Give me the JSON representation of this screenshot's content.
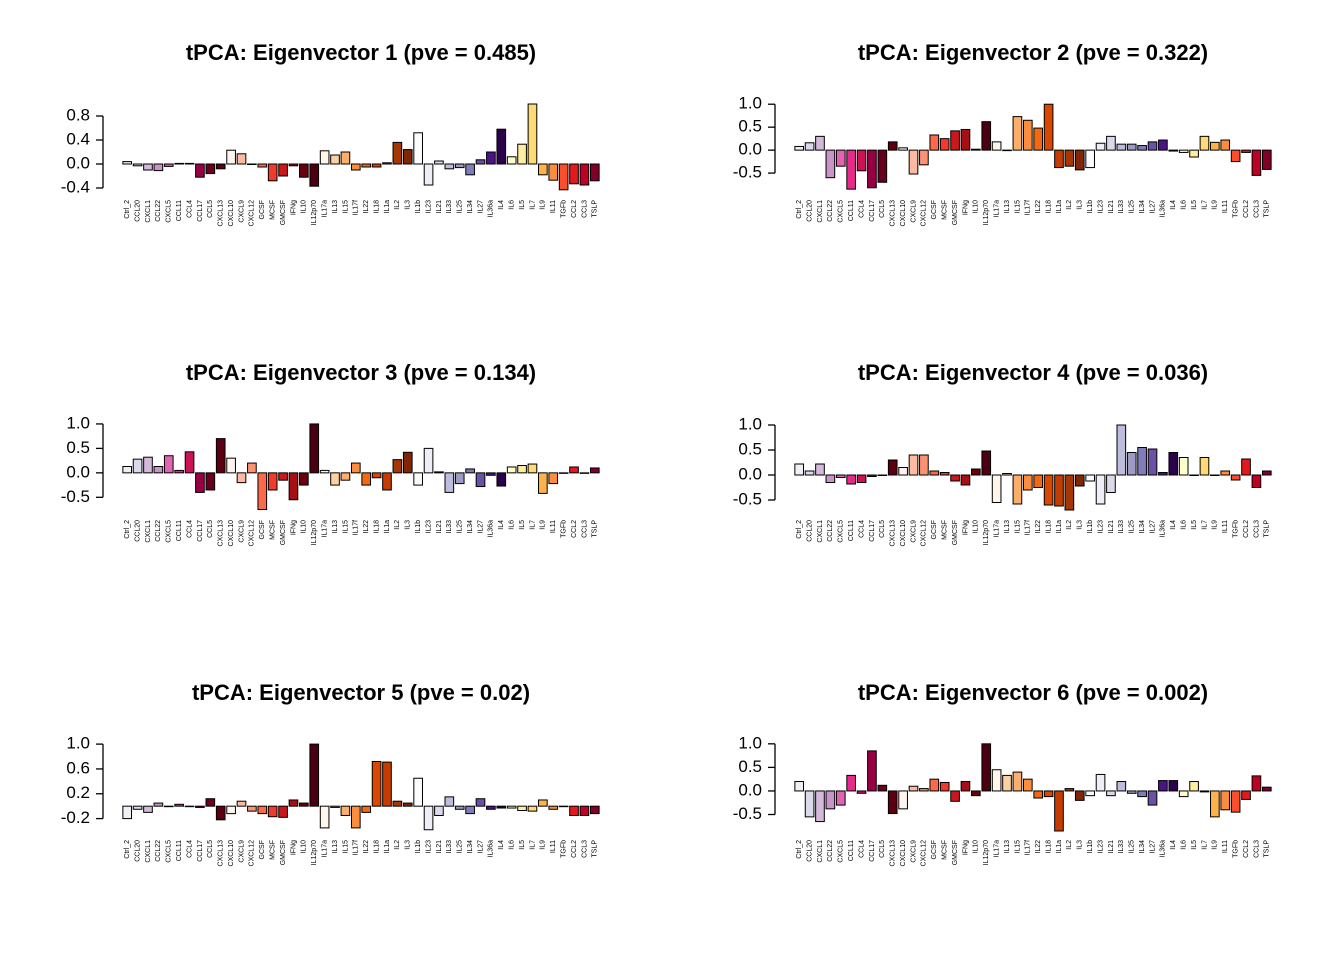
{
  "chart_data": [
    {
      "type": "bar",
      "title": "tPCA: Eigenvector 1 (pve = 0.485)",
      "categories": [
        "Ctrl_2",
        "CCL20",
        "CXCL1",
        "CCL22",
        "CXCL5",
        "CCL11",
        "CCL4",
        "CCL17",
        "CCL5",
        "CXCL13",
        "CXCL10",
        "CXCL9",
        "CXCL12",
        "GCSF",
        "MCSF",
        "GMCSF",
        "IFNg",
        "IL10",
        "IL12p70",
        "IL17a",
        "IL13",
        "IL15",
        "IL17f",
        "IL22",
        "IL18",
        "IL1a",
        "IL2",
        "IL3",
        "IL1b",
        "IL23",
        "IL21",
        "IL33",
        "IL25",
        "IL34",
        "IL27",
        "IL36a",
        "IL4",
        "IL6",
        "IL5",
        "IL7",
        "IL9",
        "IL11",
        "TGFb",
        "CCL2",
        "CCL3",
        "TSLP"
      ],
      "values": [
        0.04,
        -0.03,
        -0.1,
        -0.11,
        -0.04,
        0.01,
        0.01,
        -0.22,
        -0.16,
        -0.08,
        0.23,
        0.17,
        0.0,
        -0.05,
        -0.28,
        -0.2,
        -0.03,
        -0.22,
        -0.37,
        0.22,
        0.15,
        0.2,
        -0.1,
        -0.05,
        -0.05,
        0.02,
        0.36,
        0.24,
        0.52,
        -0.35,
        0.05,
        -0.08,
        -0.06,
        -0.18,
        0.07,
        0.2,
        0.58,
        0.12,
        0.33,
        1.0,
        -0.18,
        -0.27,
        -0.43,
        -0.33,
        -0.35,
        -0.28
      ],
      "colors": [
        "#f0eff6",
        "#dadaeb",
        "#d4b9da",
        "#c994c7",
        "#df65b0",
        "#e7298a",
        "#ce1256",
        "#980043",
        "#67001f",
        "#5a0010",
        "#fff5f0",
        "#fcbba1",
        "#fc9272",
        "#fb6a4a",
        "#ef3b2c",
        "#cb181d",
        "#a50f15",
        "#67000d",
        "#4a0010",
        "#fff5eb",
        "#fdd0a2",
        "#fdae6b",
        "#fd8d3c",
        "#f16913",
        "#d94801",
        "#c43c00",
        "#a63603",
        "#7f2704",
        "#fcfbfd",
        "#efedf5",
        "#dadaeb",
        "#bcbddc",
        "#9e9ac8",
        "#807dba",
        "#6a51a3",
        "#4a1486",
        "#2d004b",
        "#ffffcc",
        "#ffeda0",
        "#fed976",
        "#feb24c",
        "#fd8d3c",
        "#fc4e2a",
        "#e31a1c",
        "#bd0026",
        "#800026"
      ],
      "ylim": [
        -0.45,
        1.05
      ],
      "yticks": [
        -0.4,
        {
          "value": 0,
          "label": "0.0"
        },
        0.4,
        0.8
      ]
    },
    {
      "type": "bar",
      "title": "tPCA: Eigenvector 2 (pve = 0.322)",
      "categories": [
        "Ctrl_2",
        "CCL20",
        "CXCL1",
        "CCL22",
        "CXCL5",
        "CCL11",
        "CCL4",
        "CCL17",
        "CCL5",
        "CXCL13",
        "CXCL10",
        "CXCL9",
        "CXCL12",
        "GCSF",
        "MCSF",
        "GMCSF",
        "IFNg",
        "IL10",
        "IL12p70",
        "IL17a",
        "IL13",
        "IL15",
        "IL17f",
        "IL22",
        "IL18",
        "IL1a",
        "IL2",
        "IL3",
        "IL1b",
        "IL23",
        "IL21",
        "IL33",
        "IL25",
        "IL34",
        "IL27",
        "IL36a",
        "IL4",
        "IL6",
        "IL5",
        "IL7",
        "IL9",
        "IL11",
        "TGFb",
        "CCL2",
        "CCL3",
        "TSLP"
      ],
      "values": [
        0.08,
        0.16,
        0.3,
        -0.6,
        -0.35,
        -0.85,
        -0.45,
        -0.82,
        -0.7,
        0.18,
        0.05,
        -0.52,
        -0.32,
        0.33,
        0.25,
        0.42,
        0.45,
        0.02,
        0.62,
        0.18,
        0.0,
        0.73,
        0.65,
        0.48,
        1.0,
        -0.38,
        -0.35,
        -0.43,
        -0.38,
        0.15,
        0.3,
        0.13,
        0.13,
        0.1,
        0.18,
        0.22,
        -0.02,
        -0.05,
        -0.15,
        0.3,
        0.17,
        0.22,
        -0.25,
        -0.05,
        -0.55,
        -0.42
      ],
      "colors": [
        "#f0eff6",
        "#dadaeb",
        "#d4b9da",
        "#c994c7",
        "#df65b0",
        "#e7298a",
        "#ce1256",
        "#980043",
        "#67001f",
        "#5a0010",
        "#fff5f0",
        "#fcbba1",
        "#fc9272",
        "#fb6a4a",
        "#ef3b2c",
        "#cb181d",
        "#a50f15",
        "#67000d",
        "#4a0010",
        "#fff5eb",
        "#fdd0a2",
        "#fdae6b",
        "#fd8d3c",
        "#f16913",
        "#d94801",
        "#c43c00",
        "#a63603",
        "#7f2704",
        "#fcfbfd",
        "#efedf5",
        "#dadaeb",
        "#bcbddc",
        "#9e9ac8",
        "#807dba",
        "#6a51a3",
        "#4a1486",
        "#2d004b",
        "#ffffcc",
        "#ffeda0",
        "#fed976",
        "#feb24c",
        "#fd8d3c",
        "#fc4e2a",
        "#e31a1c",
        "#bd0026",
        "#800026"
      ],
      "ylim": [
        -0.89,
        1.07
      ],
      "yticks": [
        -0.5,
        {
          "value": 0,
          "label": "0.0"
        },
        0.5,
        {
          "value": 1,
          "label": "1.0"
        }
      ]
    },
    {
      "type": "bar",
      "title": "tPCA: Eigenvector 3 (pve = 0.134)",
      "categories": [
        "Ctrl_2",
        "CCL20",
        "CXCL1",
        "CCL22",
        "CXCL5",
        "CCL11",
        "CCL4",
        "CCL17",
        "CCL5",
        "CXCL13",
        "CXCL10",
        "CXCL9",
        "CXCL12",
        "GCSF",
        "MCSF",
        "GMCSF",
        "IFNg",
        "IL10",
        "IL12p70",
        "IL17a",
        "IL13",
        "IL15",
        "IL17f",
        "IL22",
        "IL18",
        "IL1a",
        "IL2",
        "IL3",
        "IL1b",
        "IL23",
        "IL21",
        "IL33",
        "IL25",
        "IL34",
        "IL27",
        "IL36a",
        "IL4",
        "IL6",
        "IL5",
        "IL7",
        "IL9",
        "IL11",
        "TGFb",
        "CCL2",
        "CCL3",
        "TSLP"
      ],
      "values": [
        0.13,
        0.28,
        0.32,
        0.13,
        0.35,
        0.05,
        0.43,
        -0.4,
        -0.35,
        0.7,
        0.3,
        -0.2,
        0.2,
        -0.75,
        -0.35,
        -0.15,
        -0.55,
        -0.25,
        1.0,
        0.05,
        -0.25,
        -0.15,
        0.2,
        -0.25,
        -0.1,
        -0.35,
        0.27,
        0.42,
        -0.25,
        0.5,
        0.02,
        -0.4,
        -0.22,
        0.08,
        -0.28,
        -0.05,
        -0.27,
        0.12,
        0.15,
        0.18,
        -0.42,
        -0.22,
        0.0,
        0.12,
        0.0,
        0.1
      ],
      "colors": [
        "#f0eff6",
        "#dadaeb",
        "#d4b9da",
        "#c994c7",
        "#df65b0",
        "#e7298a",
        "#ce1256",
        "#980043",
        "#67001f",
        "#5a0010",
        "#fff5f0",
        "#fcbba1",
        "#fc9272",
        "#fb6a4a",
        "#ef3b2c",
        "#cb181d",
        "#a50f15",
        "#67000d",
        "#4a0010",
        "#fff5eb",
        "#fdd0a2",
        "#fdae6b",
        "#fd8d3c",
        "#f16913",
        "#d94801",
        "#c43c00",
        "#a63603",
        "#7f2704",
        "#fcfbfd",
        "#efedf5",
        "#dadaeb",
        "#bcbddc",
        "#9e9ac8",
        "#807dba",
        "#6a51a3",
        "#4a1486",
        "#2d004b",
        "#ffffcc",
        "#ffeda0",
        "#fed976",
        "#feb24c",
        "#fd8d3c",
        "#fc4e2a",
        "#e31a1c",
        "#bd0026",
        "#800026"
      ],
      "ylim": [
        -0.78,
        1.06
      ],
      "yticks": [
        -0.5,
        {
          "value": 0,
          "label": "0.0"
        },
        0.5,
        {
          "value": 1,
          "label": "1.0"
        }
      ]
    },
    {
      "type": "bar",
      "title": "tPCA: Eigenvector 4 (pve = 0.036)",
      "categories": [
        "Ctrl_2",
        "CCL20",
        "CXCL1",
        "CCL22",
        "CXCL5",
        "CCL11",
        "CCL4",
        "CCL17",
        "CCL5",
        "CXCL13",
        "CXCL10",
        "CXCL9",
        "CXCL12",
        "GCSF",
        "MCSF",
        "GMCSF",
        "IFNg",
        "IL10",
        "IL12p70",
        "IL17a",
        "IL13",
        "IL15",
        "IL17f",
        "IL22",
        "IL18",
        "IL1a",
        "IL2",
        "IL3",
        "IL1b",
        "IL23",
        "IL21",
        "IL33",
        "IL25",
        "IL34",
        "IL27",
        "IL36a",
        "IL4",
        "IL6",
        "IL5",
        "IL7",
        "IL9",
        "IL11",
        "TGFb",
        "CCL2",
        "CCL3",
        "TSLP"
      ],
      "values": [
        0.22,
        0.08,
        0.22,
        -0.15,
        -0.05,
        -0.18,
        -0.15,
        -0.03,
        0.0,
        0.3,
        0.15,
        0.4,
        0.4,
        0.08,
        0.05,
        -0.12,
        -0.2,
        0.12,
        0.48,
        -0.55,
        0.03,
        -0.58,
        -0.3,
        -0.25,
        -0.6,
        -0.62,
        -0.7,
        -0.22,
        -0.12,
        -0.58,
        -0.35,
        1.0,
        0.45,
        0.55,
        0.52,
        0.05,
        0.45,
        0.35,
        0.0,
        0.35,
        0.0,
        0.08,
        -0.1,
        0.32,
        -0.25,
        0.08
      ],
      "colors": [
        "#f0eff6",
        "#dadaeb",
        "#d4b9da",
        "#c994c7",
        "#df65b0",
        "#e7298a",
        "#ce1256",
        "#980043",
        "#67001f",
        "#5a0010",
        "#fff5f0",
        "#fcbba1",
        "#fc9272",
        "#fb6a4a",
        "#ef3b2c",
        "#cb181d",
        "#a50f15",
        "#67000d",
        "#4a0010",
        "#fff5eb",
        "#fdd0a2",
        "#fdae6b",
        "#fd8d3c",
        "#f16913",
        "#d94801",
        "#c43c00",
        "#a63603",
        "#7f2704",
        "#fcfbfd",
        "#efedf5",
        "#dadaeb",
        "#bcbddc",
        "#9e9ac8",
        "#807dba",
        "#6a51a3",
        "#4a1486",
        "#2d004b",
        "#ffffcc",
        "#ffeda0",
        "#fed976",
        "#feb24c",
        "#fd8d3c",
        "#fc4e2a",
        "#e31a1c",
        "#bd0026",
        "#800026"
      ],
      "ylim": [
        -0.72,
        1.08
      ],
      "yticks": [
        -0.5,
        {
          "value": 0,
          "label": "0.0"
        },
        0.5,
        {
          "value": 1,
          "label": "1.0"
        }
      ]
    },
    {
      "type": "bar",
      "title": "tPCA: Eigenvector 5 (pve = 0.02)",
      "categories": [
        "Ctrl_2",
        "CCL20",
        "CXCL1",
        "CCL22",
        "CXCL5",
        "CCL11",
        "CCL4",
        "CCL17",
        "CCL5",
        "CXCL13",
        "CXCL10",
        "CXCL9",
        "CXCL12",
        "GCSF",
        "MCSF",
        "GMCSF",
        "IFNg",
        "IL10",
        "IL12p70",
        "IL17a",
        "IL13",
        "IL15",
        "IL17f",
        "IL22",
        "IL18",
        "IL1a",
        "IL2",
        "IL3",
        "IL1b",
        "IL23",
        "IL21",
        "IL33",
        "IL25",
        "IL34",
        "IL27",
        "IL36a",
        "IL4",
        "IL6",
        "IL5",
        "IL7",
        "IL9",
        "IL11",
        "TGFb",
        "CCL2",
        "CCL3",
        "TSLP"
      ],
      "values": [
        -0.2,
        -0.05,
        -0.1,
        0.05,
        0.0,
        0.03,
        0.0,
        -0.02,
        0.12,
        -0.22,
        -0.12,
        0.08,
        -0.08,
        -0.12,
        -0.17,
        -0.18,
        0.1,
        0.05,
        1.0,
        -0.35,
        -0.02,
        -0.15,
        -0.35,
        -0.1,
        0.72,
        0.71,
        0.08,
        0.05,
        0.45,
        -0.38,
        -0.15,
        0.15,
        -0.05,
        -0.12,
        0.12,
        -0.05,
        -0.03,
        -0.03,
        -0.07,
        -0.08,
        0.1,
        -0.05,
        0.0,
        -0.15,
        -0.15,
        -0.12
      ],
      "colors": [
        "#f0eff6",
        "#dadaeb",
        "#d4b9da",
        "#c994c7",
        "#df65b0",
        "#e7298a",
        "#ce1256",
        "#980043",
        "#67001f",
        "#5a0010",
        "#fff5f0",
        "#fcbba1",
        "#fc9272",
        "#fb6a4a",
        "#ef3b2c",
        "#cb181d",
        "#a50f15",
        "#67000d",
        "#4a0010",
        "#fff5eb",
        "#fdd0a2",
        "#fdae6b",
        "#fd8d3c",
        "#f16913",
        "#d94801",
        "#c43c00",
        "#a63603",
        "#7f2704",
        "#fcfbfd",
        "#efedf5",
        "#dadaeb",
        "#bcbddc",
        "#9e9ac8",
        "#807dba",
        "#6a51a3",
        "#4a1486",
        "#2d004b",
        "#ffffcc",
        "#ffeda0",
        "#fed976",
        "#feb24c",
        "#fd8d3c",
        "#fc4e2a",
        "#e31a1c",
        "#bd0026",
        "#800026"
      ],
      "ylim": [
        -0.4,
        1.05
      ],
      "yticks": [
        -0.2,
        0.2,
        0.6,
        {
          "value": 1,
          "label": "1.0"
        }
      ]
    },
    {
      "type": "bar",
      "title": "tPCA: Eigenvector 6 (pve = 0.002)",
      "categories": [
        "Ctrl_2",
        "CCL20",
        "CXCL1",
        "CCL22",
        "CXCL5",
        "CCL11",
        "CCL4",
        "CCL17",
        "CCL5",
        "CXCL13",
        "CXCL10",
        "CXCL9",
        "CXCL12",
        "GCSF",
        "MCSF",
        "GMCSF",
        "IFNg",
        "IL10",
        "IL12p70",
        "IL17a",
        "IL13",
        "IL15",
        "IL17f",
        "IL22",
        "IL18",
        "IL1a",
        "IL2",
        "IL3",
        "IL1b",
        "IL23",
        "IL21",
        "IL33",
        "IL25",
        "IL34",
        "IL27",
        "IL36a",
        "IL4",
        "IL6",
        "IL5",
        "IL7",
        "IL9",
        "IL11",
        "TGFb",
        "CCL2",
        "CCL3",
        "TSLP"
      ],
      "values": [
        0.2,
        -0.55,
        -0.65,
        -0.38,
        -0.3,
        0.33,
        -0.05,
        0.85,
        0.12,
        -0.48,
        -0.38,
        0.1,
        0.05,
        0.25,
        0.18,
        -0.22,
        0.2,
        -0.1,
        1.0,
        0.45,
        0.33,
        0.4,
        0.25,
        -0.15,
        -0.12,
        -0.85,
        0.05,
        -0.2,
        -0.1,
        0.35,
        -0.1,
        0.2,
        -0.05,
        -0.12,
        -0.3,
        0.22,
        0.22,
        -0.12,
        0.2,
        -0.02,
        -0.55,
        -0.4,
        -0.45,
        -0.18,
        0.32,
        0.08
      ],
      "colors": [
        "#f0eff6",
        "#dadaeb",
        "#d4b9da",
        "#c994c7",
        "#df65b0",
        "#e7298a",
        "#ce1256",
        "#980043",
        "#67001f",
        "#5a0010",
        "#fff5f0",
        "#fcbba1",
        "#fc9272",
        "#fb6a4a",
        "#ef3b2c",
        "#cb181d",
        "#a50f15",
        "#67000d",
        "#4a0010",
        "#fff5eb",
        "#fdd0a2",
        "#fdae6b",
        "#fd8d3c",
        "#f16913",
        "#d94801",
        "#c43c00",
        "#a63603",
        "#7f2704",
        "#fcfbfd",
        "#efedf5",
        "#dadaeb",
        "#bcbddc",
        "#9e9ac8",
        "#807dba",
        "#6a51a3",
        "#4a1486",
        "#2d004b",
        "#ffffcc",
        "#ffeda0",
        "#fed976",
        "#feb24c",
        "#fd8d3c",
        "#fc4e2a",
        "#e31a1c",
        "#bd0026",
        "#800026"
      ],
      "ylim": [
        -0.85,
        1.06
      ],
      "yticks": [
        -0.5,
        {
          "value": 0,
          "label": "0.0"
        },
        0.5,
        {
          "value": 1,
          "label": "1.0"
        }
      ]
    }
  ]
}
